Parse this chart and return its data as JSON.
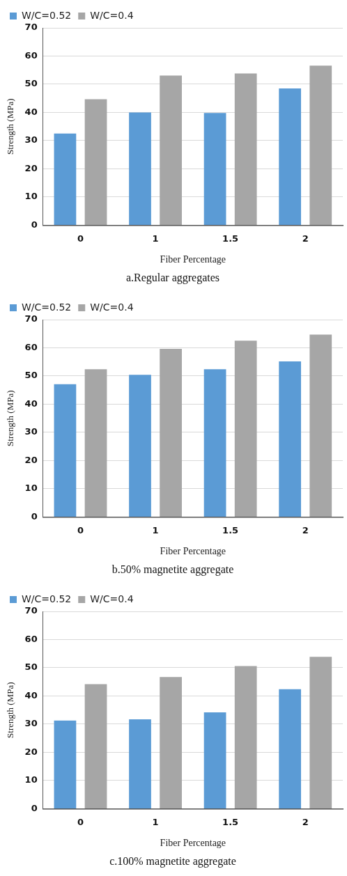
{
  "chart_data": [
    {
      "type": "bar",
      "title": "a.Regular aggregates",
      "xlabel": "Fiber Percentage",
      "ylabel": "Strength (MPa)",
      "categories": [
        "0",
        "1",
        "1.5",
        "2"
      ],
      "series": [
        {
          "name": "W/C=0.52",
          "color": "#5b9bd5",
          "values": [
            32.5,
            40,
            39.8,
            48.5
          ]
        },
        {
          "name": "W/C=0.4",
          "color": "#a6a6a6",
          "values": [
            44.7,
            53.1,
            53.8,
            56.6
          ]
        }
      ],
      "ylim": [
        0,
        70
      ],
      "yticks": [
        0,
        10,
        20,
        30,
        40,
        50,
        60,
        70
      ],
      "grid": "y",
      "legend": "top left"
    },
    {
      "type": "bar",
      "title": "b.50% magnetite aggregate",
      "xlabel": "Fiber Percentage",
      "ylabel": "Strength (MPa)",
      "categories": [
        "0",
        "1",
        "1.5",
        "2"
      ],
      "series": [
        {
          "name": "W/C=0.52",
          "color": "#5b9bd5",
          "values": [
            47.1,
            50.4,
            52.4,
            55.2
          ]
        },
        {
          "name": "W/C=0.4",
          "color": "#a6a6a6",
          "values": [
            52.4,
            59.6,
            62.5,
            64.7
          ]
        }
      ],
      "ylim": [
        0,
        70
      ],
      "yticks": [
        0,
        10,
        20,
        30,
        40,
        50,
        60,
        70
      ],
      "grid": "y",
      "legend": "top left"
    },
    {
      "type": "bar",
      "title": "c.100% magnetite aggregate",
      "xlabel": "Fiber Percentage",
      "ylabel": "Strength (MPa)",
      "categories": [
        "0",
        "1",
        "1.5",
        "2"
      ],
      "series": [
        {
          "name": "W/C=0.52",
          "color": "#5b9bd5",
          "values": [
            31.3,
            31.7,
            34.2,
            42.4
          ]
        },
        {
          "name": "W/C=0.4",
          "color": "#a6a6a6",
          "values": [
            44.2,
            46.7,
            50.6,
            53.9
          ]
        }
      ],
      "ylim": [
        0,
        70
      ],
      "yticks": [
        0,
        10,
        20,
        30,
        40,
        50,
        60,
        70
      ],
      "grid": "y",
      "legend": "top left"
    }
  ]
}
